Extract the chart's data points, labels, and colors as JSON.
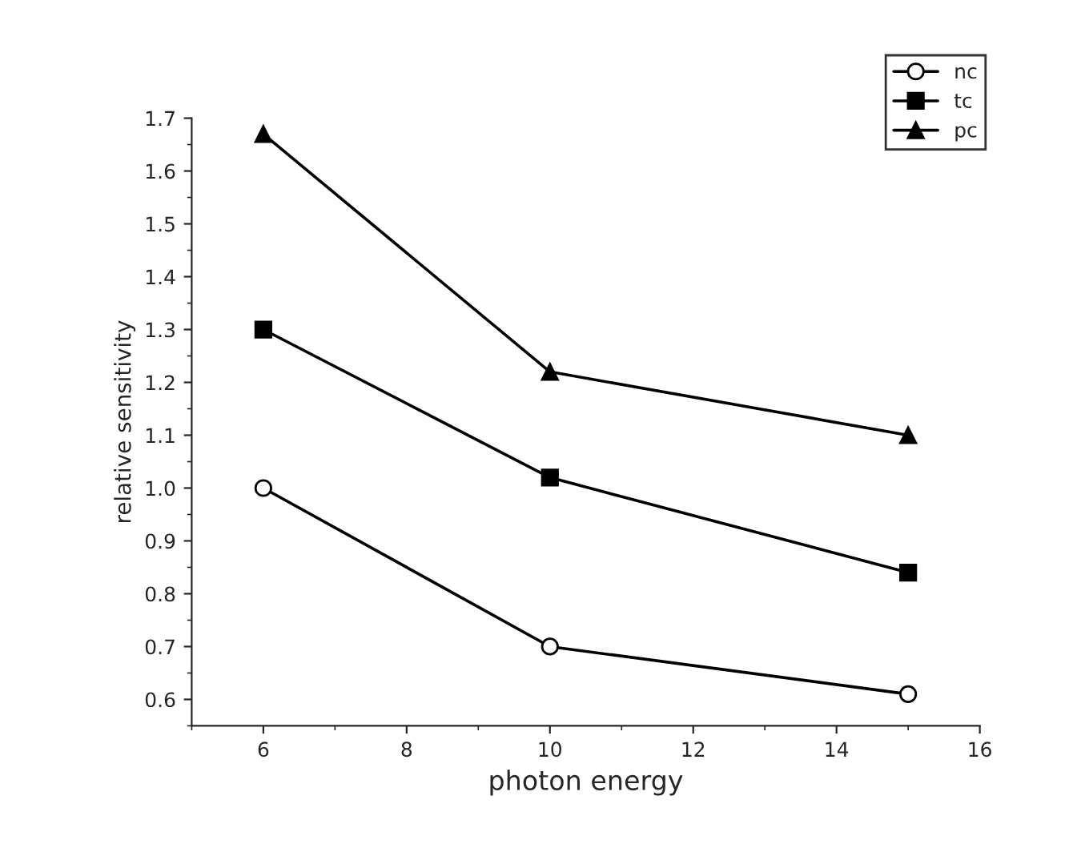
{
  "chart_data": {
    "type": "line",
    "xlabel": "photon energy",
    "ylabel": "relative sensitivity",
    "x": [
      6,
      10,
      15
    ],
    "series": [
      {
        "name": "nc",
        "color": "#000000",
        "marker": "open_circle",
        "values": [
          1.0,
          0.7,
          0.61
        ]
      },
      {
        "name": "tc",
        "color": "#000000",
        "marker": "square",
        "values": [
          1.3,
          1.02,
          0.84
        ]
      },
      {
        "name": "pc",
        "color": "#000000",
        "marker": "triangle",
        "values": [
          1.67,
          1.22,
          1.1
        ]
      }
    ],
    "xlim": [
      5,
      16
    ],
    "xticks": [
      6,
      8,
      10,
      12,
      14,
      16
    ],
    "ylim": [
      0.55,
      1.7
    ],
    "yticks": [
      0.6,
      0.7,
      0.8,
      0.9,
      {
        "value": 1.0,
        "label": "1.0"
      },
      1.1,
      1.2,
      1.3,
      1.4,
      1.5,
      1.6,
      1.7
    ],
    "grid": false,
    "legend": "top right",
    "line_style": "solid"
  }
}
